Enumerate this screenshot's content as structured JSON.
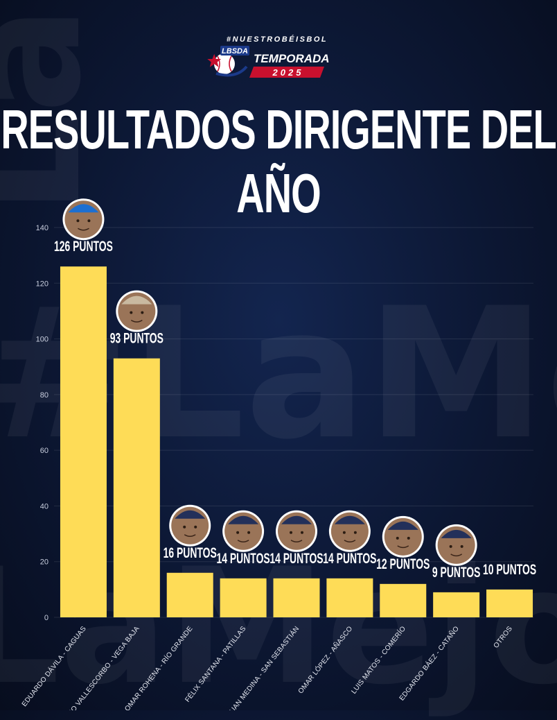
{
  "header": {
    "hashtag": "#NUESTROBÉISBOL",
    "logo_text": "LBSDA",
    "season_label": "TEMPORADA",
    "season_year": "2025",
    "title": "RESULTADOS DIRIGENTE DEL AÑO"
  },
  "background": {
    "watermark_words": [
      "LaMejorLiga",
      "#LaMejorLiga"
    ]
  },
  "colors": {
    "bar": "#fedc57",
    "background": "#0c1733",
    "accent_red": "#c8102e",
    "accent_blue": "#1b3a8a"
  },
  "chart_data": {
    "type": "bar",
    "title": "RESULTADOS DIRIGENTE DEL AÑO",
    "xlabel": "",
    "ylabel": "",
    "ylim": [
      0,
      140
    ],
    "yticks": [
      0,
      20,
      40,
      60,
      80,
      100,
      120,
      140
    ],
    "grid": true,
    "categories": [
      "EDUARDO DÁVILA - CAGUAS",
      "ANTONIO VALLESCORBO - VEGA BAJA",
      "OMAR ROHENA - RÍO GRANDE",
      "FÉLIX SANTANA - PATILLAS",
      "JUAN MEDINA - SAN SEBASTIÁN",
      "OMAR LÓPEZ - AÑASCO",
      "LUIS MATOS - COMERÍO",
      "EDGARDO BÁEZ - CATAÑO",
      "OTROS"
    ],
    "values": [
      126,
      93,
      16,
      14,
      14,
      14,
      12,
      9,
      10
    ],
    "data_labels": [
      "126 PUNTOS",
      "93 PUNTOS",
      "16 PUNTOS",
      "14 PUNTOS",
      "14 PUNTOS",
      "14 PUNTOS",
      "12 PUNTOS",
      "9 PUNTOS",
      "10 PUNTOS"
    ],
    "avatars": [
      true,
      true,
      true,
      true,
      true,
      true,
      true,
      true,
      false
    ]
  }
}
